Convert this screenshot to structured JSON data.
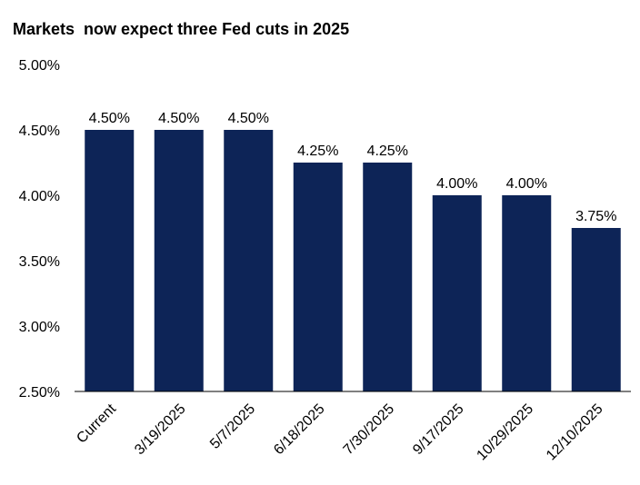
{
  "chart_data": {
    "type": "bar",
    "title": "Markets  now expect three Fed cuts in 2025",
    "xlabel": "",
    "ylabel": "",
    "categories": [
      "Current",
      "3/19/2025",
      "5/7/2025",
      "6/18/2025",
      "7/30/2025",
      "9/17/2025",
      "10/29/2025",
      "12/10/2025"
    ],
    "values": [
      4.5,
      4.5,
      4.5,
      4.25,
      4.25,
      4.0,
      4.0,
      3.75
    ],
    "data_labels": [
      "4.50%",
      "4.50%",
      "4.50%",
      "4.25%",
      "4.25%",
      "4.00%",
      "4.00%",
      "3.75%"
    ],
    "ylim": [
      2.5,
      5.0
    ],
    "yticks": [
      2.5,
      3.0,
      3.5,
      4.0,
      4.5,
      5.0
    ],
    "ytick_labels": [
      "2.50%",
      "3.00%",
      "3.50%",
      "4.00%",
      "4.50%",
      "5.00%"
    ],
    "grid": false,
    "legend": "none",
    "bar_color": "#0d2457"
  }
}
